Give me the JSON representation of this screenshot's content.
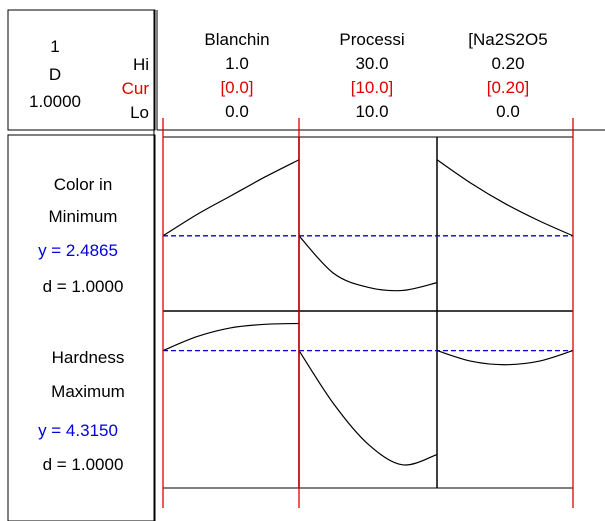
{
  "header": {
    "composite_num": "1",
    "composite_label": "D",
    "composite_value": "1.0000",
    "hi_label": "Hi",
    "cur_label": "Cur",
    "lo_label": "Lo"
  },
  "colors": {
    "current_setting": "#e00000",
    "optimal_response": "#0000dd",
    "curve": "#000000"
  },
  "chart_data": {
    "type": "line",
    "factors": [
      {
        "name": "Blanchin",
        "hi": "1.0",
        "cur": "[0.0]",
        "lo": "0.0",
        "hi_value": 1.0,
        "cur_value": 0.0,
        "lo_value": 0.0
      },
      {
        "name": "Processi",
        "hi": "30.0",
        "cur": "[10.0]",
        "lo": "10.0",
        "hi_value": 30.0,
        "cur_value": 10.0,
        "lo_value": 10.0
      },
      {
        "name": "[Na2S2O5",
        "hi": "0.20",
        "cur": "[0.20]",
        "lo": "0.0",
        "hi_value": 0.2,
        "cur_value": 0.2,
        "lo_value": 0.0
      }
    ],
    "responses": [
      {
        "name": "Color in",
        "goal": "Minimum",
        "y_text": "y = 2.4865",
        "d_text": "d = 1.0000",
        "y_value": 2.4865,
        "ylim": [
          1.9,
          3.3
        ],
        "curves": [
          {
            "x": [
              0,
              0.25,
              0.5,
              0.75,
              1.0
            ],
            "y": [
              2.4865,
              2.691,
              2.871,
              3.051,
              3.216
            ]
          },
          {
            "x": [
              10,
              15,
              20,
              25,
              30
            ],
            "y": [
              2.4865,
              2.128,
              1.993,
              1.963,
              2.038
            ]
          },
          {
            "x": [
              0,
              0.05,
              0.1,
              0.15,
              0.2
            ],
            "y": [
              3.216,
              2.991,
              2.796,
              2.631,
              2.4865
            ]
          }
        ]
      },
      {
        "name": "Hardness",
        "goal": "Maximum",
        "y_text": "y = 4.3150",
        "d_text": "d = 1.0000",
        "y_value": 4.315,
        "ylim": [
          2.7,
          4.65
        ],
        "curves": [
          {
            "x": [
              0,
              0.25,
              0.5,
              0.75,
              1.0
            ],
            "y": [
              4.315,
              4.498,
              4.613,
              4.659,
              4.67
            ]
          },
          {
            "x": [
              10,
              15,
              20,
              25,
              30
            ],
            "y": [
              4.315,
              3.621,
              3.092,
              2.82,
              2.955
            ]
          },
          {
            "x": [
              0,
              0.05,
              0.1,
              0.15,
              0.2
            ],
            "y": [
              4.315,
              4.176,
              4.13,
              4.176,
              4.315
            ]
          }
        ]
      }
    ]
  }
}
